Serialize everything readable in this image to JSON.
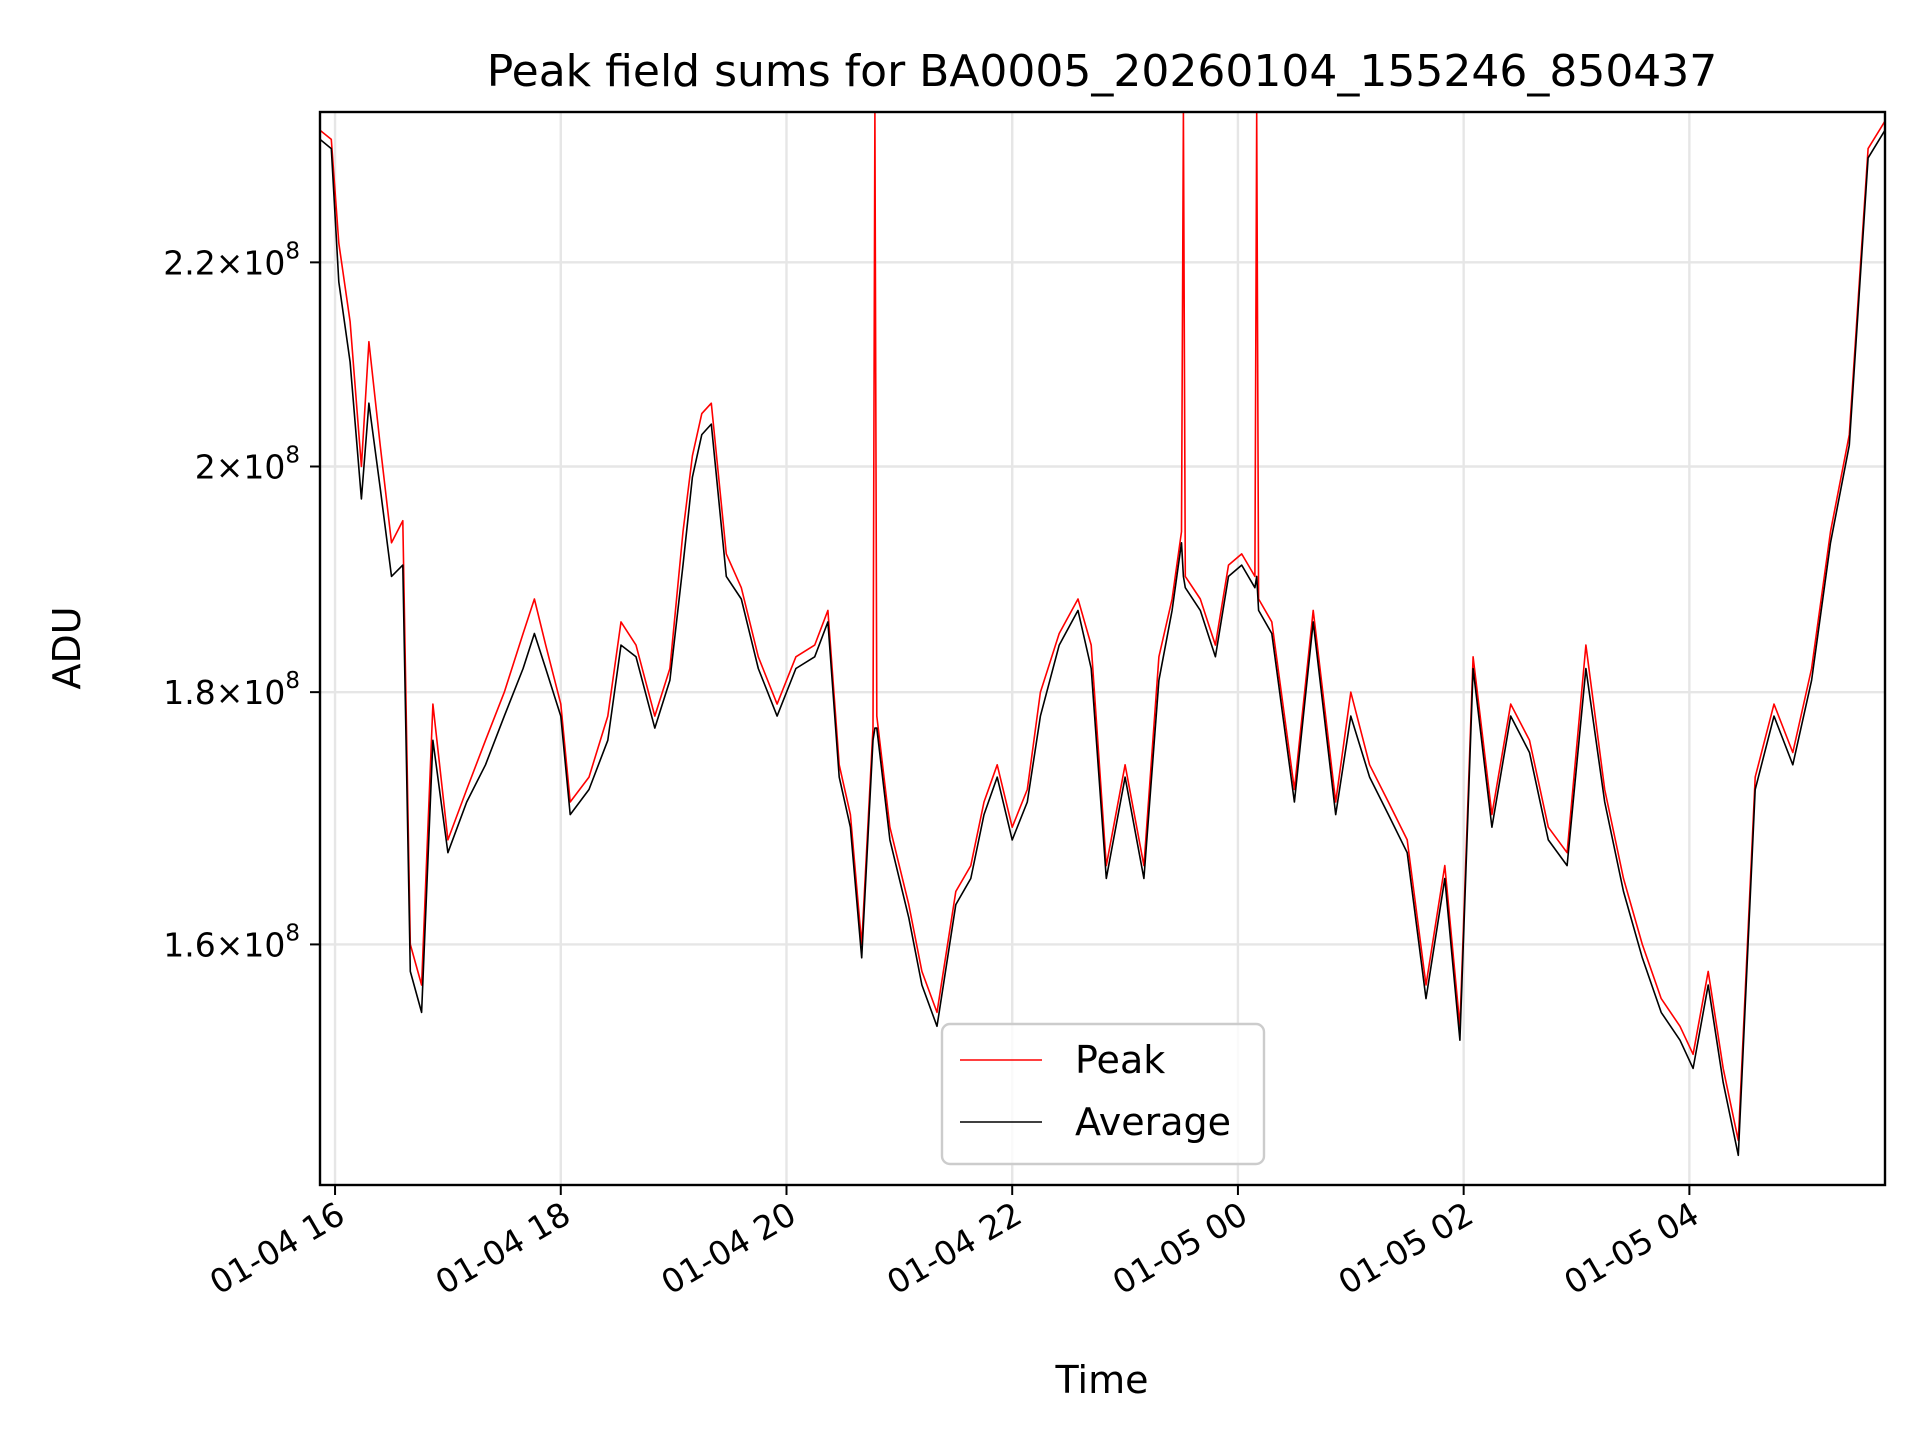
{
  "chart_data": {
    "type": "line",
    "title": "Peak field sums for BA0005_20260104_155246_850437",
    "xlabel": "Time",
    "ylabel": "ADU",
    "y_scale": "log",
    "grid": true,
    "legend_position": "lower-center",
    "xlim": [
      "2026-01-04 15:52",
      "2026-01-05 05:44"
    ],
    "ylim": [
      143000000,
      236000000
    ],
    "x_ticks": [
      {
        "value": "2026-01-04 16:00",
        "label": "01-04 16"
      },
      {
        "value": "2026-01-04 18:00",
        "label": "01-04 18"
      },
      {
        "value": "2026-01-04 20:00",
        "label": "01-04 20"
      },
      {
        "value": "2026-01-04 22:00",
        "label": "01-04 22"
      },
      {
        "value": "2026-01-05 00:00",
        "label": "01-05 00"
      },
      {
        "value": "2026-01-05 02:00",
        "label": "01-05 02"
      },
      {
        "value": "2026-01-05 04:00",
        "label": "01-05 04"
      }
    ],
    "y_ticks": [
      {
        "value": 160000000,
        "mantissa": "1.6",
        "exponent": "8"
      },
      {
        "value": 180000000,
        "mantissa": "1.8",
        "exponent": "8"
      },
      {
        "value": 200000000,
        "mantissa": "2",
        "exponent": "8"
      },
      {
        "value": 220000000,
        "mantissa": "2.2",
        "exponent": "8"
      }
    ],
    "series": [
      {
        "name": "Peak",
        "color": "#ff0000",
        "x": [
          "2026-01-04 15:52",
          "2026-01-04 15:58",
          "2026-01-04 16:02",
          "2026-01-04 16:08",
          "2026-01-04 16:14",
          "2026-01-04 16:18",
          "2026-01-04 16:24",
          "2026-01-04 16:30",
          "2026-01-04 16:36",
          "2026-01-04 16:40",
          "2026-01-04 16:46",
          "2026-01-04 16:52",
          "2026-01-04 17:00",
          "2026-01-04 17:10",
          "2026-01-04 17:20",
          "2026-01-04 17:30",
          "2026-01-04 17:40",
          "2026-01-04 17:46",
          "2026-01-04 17:52",
          "2026-01-04 18:00",
          "2026-01-04 18:05",
          "2026-01-04 18:15",
          "2026-01-04 18:25",
          "2026-01-04 18:32",
          "2026-01-04 18:40",
          "2026-01-04 18:50",
          "2026-01-04 18:58",
          "2026-01-04 19:05",
          "2026-01-04 19:10",
          "2026-01-04 19:15",
          "2026-01-04 19:20",
          "2026-01-04 19:28",
          "2026-01-04 19:36",
          "2026-01-04 19:45",
          "2026-01-04 19:55",
          "2026-01-04 20:05",
          "2026-01-04 20:15",
          "2026-01-04 20:22",
          "2026-01-04 20:28",
          "2026-01-04 20:34",
          "2026-01-04 20:40",
          "2026-01-04 20:46",
          "2026-01-04 20:47",
          "2026-01-04 20:48",
          "2026-01-04 20:55",
          "2026-01-04 21:05",
          "2026-01-04 21:12",
          "2026-01-04 21:20",
          "2026-01-04 21:30",
          "2026-01-04 21:38",
          "2026-01-04 21:45",
          "2026-01-04 21:52",
          "2026-01-04 22:00",
          "2026-01-04 22:08",
          "2026-01-04 22:15",
          "2026-01-04 22:25",
          "2026-01-04 22:35",
          "2026-01-04 22:42",
          "2026-01-04 22:50",
          "2026-01-04 23:00",
          "2026-01-04 23:10",
          "2026-01-04 23:18",
          "2026-01-04 23:25",
          "2026-01-04 23:30",
          "2026-01-04 23:31",
          "2026-01-04 23:32",
          "2026-01-04 23:40",
          "2026-01-04 23:48",
          "2026-01-04 23:55",
          "2026-01-05 00:02",
          "2026-01-05 00:09",
          "2026-01-05 00:10",
          "2026-01-05 00:11",
          "2026-01-05 00:18",
          "2026-01-05 00:30",
          "2026-01-05 00:40",
          "2026-01-05 00:52",
          "2026-01-05 01:00",
          "2026-01-05 01:10",
          "2026-01-05 01:20",
          "2026-01-05 01:30",
          "2026-01-05 01:40",
          "2026-01-05 01:50",
          "2026-01-05 01:58",
          "2026-01-05 02:05",
          "2026-01-05 02:15",
          "2026-01-05 02:25",
          "2026-01-05 02:35",
          "2026-01-05 02:45",
          "2026-01-05 02:55",
          "2026-01-05 03:05",
          "2026-01-05 03:15",
          "2026-01-05 03:25",
          "2026-01-05 03:35",
          "2026-01-05 03:45",
          "2026-01-05 03:55",
          "2026-01-05 04:02",
          "2026-01-05 04:10",
          "2026-01-05 04:18",
          "2026-01-05 04:26",
          "2026-01-05 04:35",
          "2026-01-05 04:45",
          "2026-01-05 04:55",
          "2026-01-05 05:05",
          "2026-01-05 05:15",
          "2026-01-05 05:25",
          "2026-01-05 05:35",
          "2026-01-05 05:44"
        ],
        "y": [
          234000000,
          233000000,
          222000000,
          214000000,
          200000000,
          212000000,
          202000000,
          193000000,
          195000000,
          160000000,
          157000000,
          179000000,
          168000000,
          172000000,
          176000000,
          180000000,
          185000000,
          188000000,
          184000000,
          179000000,
          171000000,
          173000000,
          178000000,
          186000000,
          184000000,
          178000000,
          182000000,
          194000000,
          201000000,
          205000000,
          206000000,
          192000000,
          189000000,
          183000000,
          179000000,
          183000000,
          184000000,
          187000000,
          174000000,
          170000000,
          160000000,
          177000000,
          236000000,
          178000000,
          169000000,
          163000000,
          158000000,
          155000000,
          164000000,
          166000000,
          171000000,
          174000000,
          169000000,
          172000000,
          180000000,
          185000000,
          188000000,
          184000000,
          166000000,
          174000000,
          166000000,
          183000000,
          188000000,
          194000000,
          236000000,
          190000000,
          188000000,
          184000000,
          191000000,
          192000000,
          190000000,
          236000000,
          188000000,
          186000000,
          172000000,
          187000000,
          171000000,
          180000000,
          174000000,
          171000000,
          168000000,
          157000000,
          166000000,
          154000000,
          183000000,
          170000000,
          179000000,
          176000000,
          169000000,
          167000000,
          184000000,
          172000000,
          165000000,
          160000000,
          156000000,
          154000000,
          152000000,
          158000000,
          151000000,
          146000000,
          173000000,
          179000000,
          175000000,
          182000000,
          194000000,
          203000000,
          232000000,
          235000000
        ]
      },
      {
        "name": "Average",
        "color": "#000000",
        "x": [
          "2026-01-04 15:52",
          "2026-01-04 15:58",
          "2026-01-04 16:02",
          "2026-01-04 16:08",
          "2026-01-04 16:14",
          "2026-01-04 16:18",
          "2026-01-04 16:24",
          "2026-01-04 16:30",
          "2026-01-04 16:36",
          "2026-01-04 16:40",
          "2026-01-04 16:46",
          "2026-01-04 16:52",
          "2026-01-04 17:00",
          "2026-01-04 17:10",
          "2026-01-04 17:20",
          "2026-01-04 17:30",
          "2026-01-04 17:40",
          "2026-01-04 17:46",
          "2026-01-04 17:52",
          "2026-01-04 18:00",
          "2026-01-04 18:05",
          "2026-01-04 18:15",
          "2026-01-04 18:25",
          "2026-01-04 18:32",
          "2026-01-04 18:40",
          "2026-01-04 18:50",
          "2026-01-04 18:58",
          "2026-01-04 19:05",
          "2026-01-04 19:10",
          "2026-01-04 19:15",
          "2026-01-04 19:20",
          "2026-01-04 19:28",
          "2026-01-04 19:36",
          "2026-01-04 19:45",
          "2026-01-04 19:55",
          "2026-01-04 20:05",
          "2026-01-04 20:15",
          "2026-01-04 20:22",
          "2026-01-04 20:28",
          "2026-01-04 20:34",
          "2026-01-04 20:40",
          "2026-01-04 20:46",
          "2026-01-04 20:47",
          "2026-01-04 20:48",
          "2026-01-04 20:55",
          "2026-01-04 21:05",
          "2026-01-04 21:12",
          "2026-01-04 21:20",
          "2026-01-04 21:30",
          "2026-01-04 21:38",
          "2026-01-04 21:45",
          "2026-01-04 21:52",
          "2026-01-04 22:00",
          "2026-01-04 22:08",
          "2026-01-04 22:15",
          "2026-01-04 22:25",
          "2026-01-04 22:35",
          "2026-01-04 22:42",
          "2026-01-04 22:50",
          "2026-01-04 23:00",
          "2026-01-04 23:10",
          "2026-01-04 23:18",
          "2026-01-04 23:25",
          "2026-01-04 23:30",
          "2026-01-04 23:31",
          "2026-01-04 23:32",
          "2026-01-04 23:40",
          "2026-01-04 23:48",
          "2026-01-04 23:55",
          "2026-01-05 00:02",
          "2026-01-05 00:09",
          "2026-01-05 00:10",
          "2026-01-05 00:11",
          "2026-01-05 00:18",
          "2026-01-05 00:30",
          "2026-01-05 00:40",
          "2026-01-05 00:52",
          "2026-01-05 01:00",
          "2026-01-05 01:10",
          "2026-01-05 01:20",
          "2026-01-05 01:30",
          "2026-01-05 01:40",
          "2026-01-05 01:50",
          "2026-01-05 01:58",
          "2026-01-05 02:05",
          "2026-01-05 02:15",
          "2026-01-05 02:25",
          "2026-01-05 02:35",
          "2026-01-05 02:45",
          "2026-01-05 02:55",
          "2026-01-05 03:05",
          "2026-01-05 03:15",
          "2026-01-05 03:25",
          "2026-01-05 03:35",
          "2026-01-05 03:45",
          "2026-01-05 03:55",
          "2026-01-05 04:02",
          "2026-01-05 04:10",
          "2026-01-05 04:18",
          "2026-01-05 04:26",
          "2026-01-05 04:35",
          "2026-01-05 04:45",
          "2026-01-05 04:55",
          "2026-01-05 05:05",
          "2026-01-05 05:15",
          "2026-01-05 05:25",
          "2026-01-05 05:35",
          "2026-01-05 05:44"
        ],
        "y": [
          233000000,
          232000000,
          218000000,
          210000000,
          197000000,
          206000000,
          198000000,
          190000000,
          191000000,
          158000000,
          155000000,
          176000000,
          167000000,
          171000000,
          174000000,
          178000000,
          182000000,
          185000000,
          182000000,
          178000000,
          170000000,
          172000000,
          176000000,
          184000000,
          183000000,
          177000000,
          181000000,
          191000000,
          199000000,
          203000000,
          204000000,
          190000000,
          188000000,
          182000000,
          178000000,
          182000000,
          183000000,
          186000000,
          173000000,
          169000000,
          159000000,
          176000000,
          177000000,
          177000000,
          168000000,
          162000000,
          157000000,
          154000000,
          163000000,
          165000000,
          170000000,
          173000000,
          168000000,
          171000000,
          178000000,
          184000000,
          187000000,
          182000000,
          165000000,
          173000000,
          165000000,
          181000000,
          187000000,
          193000000,
          190000000,
          189000000,
          187000000,
          183000000,
          190000000,
          191000000,
          189000000,
          190000000,
          187000000,
          185000000,
          171000000,
          186000000,
          170000000,
          178000000,
          173000000,
          170000000,
          167000000,
          156000000,
          165000000,
          153000000,
          182000000,
          169000000,
          178000000,
          175000000,
          168000000,
          166000000,
          182000000,
          171000000,
          164000000,
          159000000,
          155000000,
          153000000,
          151000000,
          157000000,
          150000000,
          145000000,
          172000000,
          178000000,
          174000000,
          181000000,
          193000000,
          202000000,
          231000000,
          234000000
        ]
      }
    ]
  }
}
